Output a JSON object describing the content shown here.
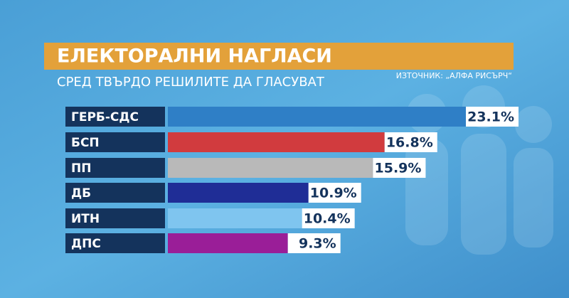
{
  "chart_data": {
    "type": "hbar",
    "title": "ЕЛЕКТОРАЛНИ НАГЛАСИ",
    "subtitle": "СРЕД ТВЪРДО РЕШИЛИТЕ ДА ГЛАСУВАТ",
    "source": "ИЗТОЧНИК: „АЛФА РИСЪРЧ“",
    "categories": [
      "ГЕРБ-СДС",
      "БСП",
      "ПП",
      "ДБ",
      "ИТН",
      "ДПС"
    ],
    "values": [
      23.1,
      16.8,
      15.9,
      10.9,
      10.4,
      9.3
    ],
    "value_labels": [
      "23.1%",
      "16.8%",
      "15.9%",
      "10.9%",
      "10.4%",
      "9.3%"
    ],
    "colors": [
      "#2f7fc6",
      "#d13b3e",
      "#b9b9b9",
      "#1f2d96",
      "#7fc5ef",
      "#9a1e98"
    ]
  }
}
